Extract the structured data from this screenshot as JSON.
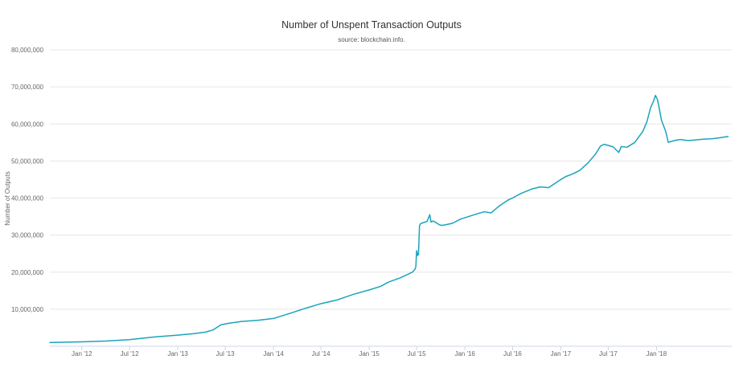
{
  "chart_data": {
    "type": "line",
    "title": "Number of Unspent Transaction Outputs",
    "subtitle": "source: blockchain.info.",
    "xlabel": "",
    "ylabel": "Number of Outputs",
    "ylim": [
      0,
      80000000
    ],
    "yticks": [
      {
        "value": 10000000,
        "label": "10,000,000"
      },
      {
        "value": 20000000,
        "label": "20,000,000"
      },
      {
        "value": 30000000,
        "label": "30,000,000"
      },
      {
        "value": 40000000,
        "label": "40,000,000"
      },
      {
        "value": 50000000,
        "label": "50,000,000"
      },
      {
        "value": 60000000,
        "label": "60,000,000"
      },
      {
        "value": 70000000,
        "label": "70,000,000"
      },
      {
        "value": 80000000,
        "label": "80,000,000"
      }
    ],
    "xlim": [
      "2011-09-01",
      "2018-10-15"
    ],
    "xticks": [
      {
        "date": "2012-01-01",
        "label": "Jan '12"
      },
      {
        "date": "2012-07-01",
        "label": "Jul '12"
      },
      {
        "date": "2013-01-01",
        "label": "Jan '13"
      },
      {
        "date": "2013-07-01",
        "label": "Jul '13"
      },
      {
        "date": "2014-01-01",
        "label": "Jan '14"
      },
      {
        "date": "2014-07-01",
        "label": "Jul '14"
      },
      {
        "date": "2015-01-01",
        "label": "Jan '15"
      },
      {
        "date": "2015-07-01",
        "label": "Jul '15"
      },
      {
        "date": "2016-01-01",
        "label": "Jan '16"
      },
      {
        "date": "2016-07-01",
        "label": "Jul '16"
      },
      {
        "date": "2017-01-01",
        "label": "Jan '17"
      },
      {
        "date": "2017-07-01",
        "label": "Jul '17"
      },
      {
        "date": "2018-01-01",
        "label": "Jan '18"
      }
    ],
    "grid": true,
    "legend": "none",
    "color": "#1aa3bd",
    "series": [
      {
        "x": [
          "2011-09-01",
          "2011-11-01",
          "2012-01-01",
          "2012-04-01",
          "2012-07-01",
          "2012-10-01",
          "2013-01-01",
          "2013-03-01",
          "2013-04-15",
          "2013-05-15",
          "2013-06-15",
          "2013-07-15",
          "2013-09-01",
          "2013-11-01",
          "2014-01-01",
          "2014-03-01",
          "2014-05-01",
          "2014-07-01",
          "2014-09-01",
          "2014-11-01",
          "2015-01-01",
          "2015-02-15",
          "2015-03-15",
          "2015-05-01",
          "2015-06-15",
          "2015-06-25",
          "2015-06-28",
          "2015-07-01",
          "2015-07-05",
          "2015-07-08",
          "2015-07-12",
          "2015-07-15",
          "2015-07-20",
          "2015-08-10",
          "2015-08-20",
          "2015-08-25",
          "2015-09-01",
          "2015-09-15",
          "2015-09-25",
          "2015-10-05",
          "2015-10-20",
          "2015-11-15",
          "2015-12-15",
          "2016-01-15",
          "2016-02-15",
          "2016-03-15",
          "2016-04-10",
          "2016-04-25",
          "2016-05-10",
          "2016-06-15",
          "2016-07-01",
          "2016-08-01",
          "2016-09-15",
          "2016-10-15",
          "2016-11-15",
          "2016-12-15",
          "2017-01-01",
          "2017-01-20",
          "2017-02-15",
          "2017-03-15",
          "2017-04-15",
          "2017-05-15",
          "2017-06-01",
          "2017-06-15",
          "2017-07-01",
          "2017-07-20",
          "2017-08-10",
          "2017-08-20",
          "2017-09-10",
          "2017-10-10",
          "2017-11-10",
          "2017-11-25",
          "2017-12-10",
          "2017-12-20",
          "2017-12-28",
          "2018-01-05",
          "2018-01-12",
          "2018-01-20",
          "2018-02-05",
          "2018-02-15",
          "2018-02-22",
          "2018-03-10",
          "2018-04-01",
          "2018-05-01",
          "2018-06-01",
          "2018-07-01",
          "2018-08-01",
          "2018-09-01",
          "2018-10-01"
        ],
        "y": [
          1000000,
          1100000,
          1200000,
          1400000,
          1800000,
          2500000,
          3000000,
          3400000,
          3800000,
          4400000,
          5800000,
          6200000,
          6700000,
          7000000,
          7500000,
          8800000,
          10200000,
          11500000,
          12500000,
          14000000,
          15200000,
          16200000,
          17300000,
          18500000,
          20000000,
          20800000,
          21500000,
          25800000,
          24500000,
          24800000,
          32500000,
          33000000,
          33200000,
          33700000,
          35500000,
          33500000,
          33800000,
          33300000,
          32800000,
          32600000,
          32800000,
          33200000,
          34300000,
          35000000,
          35700000,
          36300000,
          36000000,
          36900000,
          37800000,
          39500000,
          40000000,
          41200000,
          42500000,
          43000000,
          42800000,
          44200000,
          45000000,
          45800000,
          46500000,
          47500000,
          49500000,
          52000000,
          54000000,
          54500000,
          54200000,
          53800000,
          52300000,
          53900000,
          53700000,
          55000000,
          58000000,
          60500000,
          64500000,
          66000000,
          67700000,
          66500000,
          64000000,
          61000000,
          58000000,
          55000000,
          55200000,
          55500000,
          55800000,
          55500000,
          55700000,
          55900000,
          56000000,
          56300000,
          56600000
        ]
      }
    ]
  }
}
